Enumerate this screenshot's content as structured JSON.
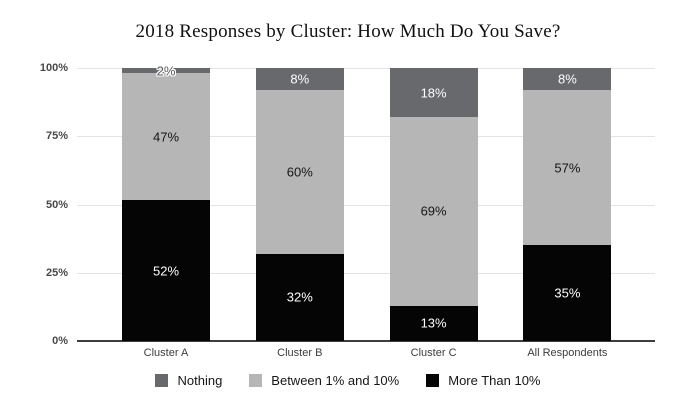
{
  "chart_data": {
    "type": "bar",
    "stacked": true,
    "title": "2018 Responses by Cluster: How Much Do You Save?",
    "categories": [
      "Cluster A",
      "Cluster B",
      "Cluster C",
      "All Respondents"
    ],
    "series": [
      {
        "name": "More Than 10%",
        "color": "#050505",
        "label_color": "#ffffff",
        "values": [
          52,
          32,
          13,
          35
        ]
      },
      {
        "name": "Between 1% and 10%",
        "color": "#b6b6b6",
        "label_color": "#161616",
        "values": [
          47,
          60,
          69,
          57
        ]
      },
      {
        "name": "Nothing",
        "color": "#67696c",
        "label_color": "#ffffff",
        "values": [
          2,
          8,
          18,
          8
        ]
      }
    ],
    "value_suffix": "%",
    "yticks": [
      0,
      25,
      50,
      75,
      100
    ],
    "ytick_labels": [
      "0%",
      "25%",
      "50%",
      "75%",
      "100%"
    ],
    "ylim": [
      0,
      100
    ],
    "grid": true,
    "legend_position": "bottom",
    "legend_order": [
      "Nothing",
      "Between 1% and 10%",
      "More Than 10%"
    ]
  }
}
